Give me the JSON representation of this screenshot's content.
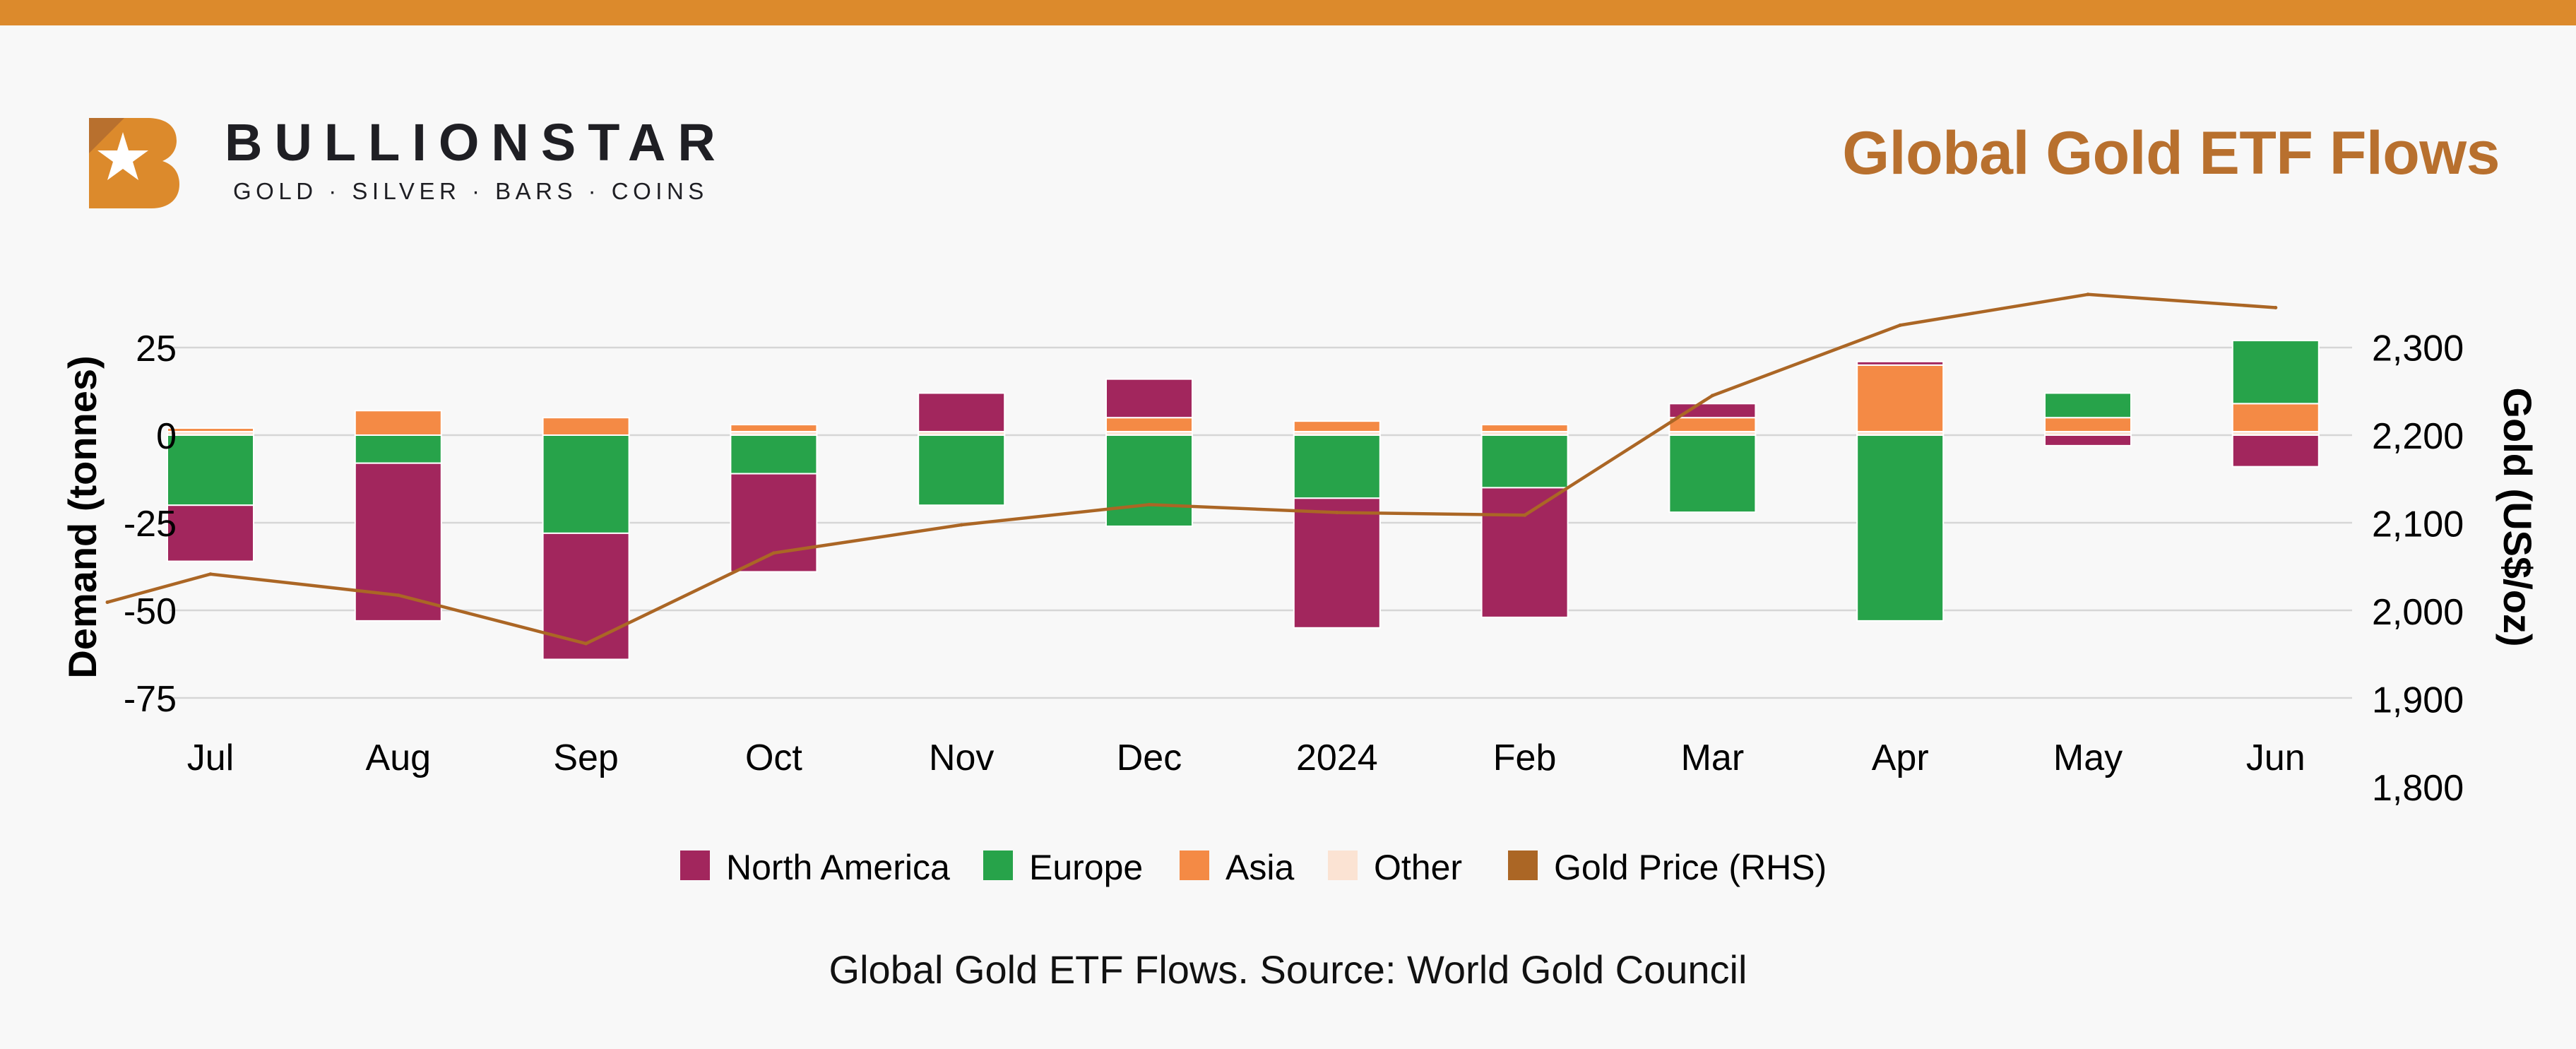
{
  "header": {
    "brand_name": "BULLIONSTAR",
    "brand_tagline": "GOLD · SILVER · BARS · COINS",
    "title": "Global Gold ETF Flows"
  },
  "caption": "Global Gold ETF Flows. Source: World Gold Council",
  "colors": {
    "north_america": "#a2265d",
    "europe": "#27a34a",
    "asia": "#f48a45",
    "other": "#fbe3d3",
    "gold_price": "#ab6625",
    "accent": "#dc8a2c"
  },
  "chart_data": {
    "type": "bar",
    "stacked": true,
    "categories": [
      "Jul",
      "Aug",
      "Sep",
      "Oct",
      "Nov",
      "Dec",
      "2024",
      "Feb",
      "Mar",
      "Apr",
      "May",
      "Jun"
    ],
    "series": [
      {
        "name": "North America",
        "axis": "left",
        "values": [
          -16,
          -45,
          -36,
          -28,
          11,
          11,
          -37,
          -37,
          4,
          1,
          -3,
          -9
        ]
      },
      {
        "name": "Europe",
        "axis": "left",
        "values": [
          -20,
          -8,
          -28,
          -11,
          -20,
          -26,
          -18,
          -15,
          -22,
          -53,
          7,
          18
        ]
      },
      {
        "name": "Asia",
        "axis": "left",
        "values": [
          1,
          7,
          5,
          2,
          0,
          4,
          3,
          2,
          4,
          19,
          4,
          8
        ]
      },
      {
        "name": "Other",
        "axis": "left",
        "values": [
          1,
          0,
          0,
          1,
          1,
          1,
          1,
          1,
          1,
          1,
          1,
          1
        ]
      }
    ],
    "line_series": {
      "name": "Gold Price (RHS)",
      "axis": "right",
      "x": [
        "Jun",
        "Jul",
        "Aug",
        "Sep",
        "Oct",
        "Nov",
        "Dec",
        "2024",
        "Feb",
        "Mar",
        "Apr",
        "May",
        "Jun"
      ],
      "values": [
        2010,
        2042,
        2018,
        1963,
        2066,
        2098,
        2121,
        2112,
        2109,
        2245,
        2325,
        2360,
        2345
      ]
    },
    "y_left": {
      "label": "Demand (tonnes)",
      "ticks": [
        "25",
        "0",
        "-25",
        "-50",
        "-75"
      ],
      "tick_values": [
        25,
        0,
        -25,
        -50,
        -75
      ]
    },
    "y_right": {
      "label": "Gold (US$/oz)",
      "ticks": [
        "2,300",
        "2,200",
        "2,100",
        "2,000",
        "1,900",
        "1,800"
      ],
      "tick_values": [
        2300,
        2200,
        2100,
        2000,
        1900,
        1800
      ]
    },
    "grid": true,
    "legend": {
      "position": "bottom",
      "entries": [
        "North America",
        "Europe",
        "Asia",
        "Other",
        "Gold Price (RHS)"
      ]
    }
  }
}
